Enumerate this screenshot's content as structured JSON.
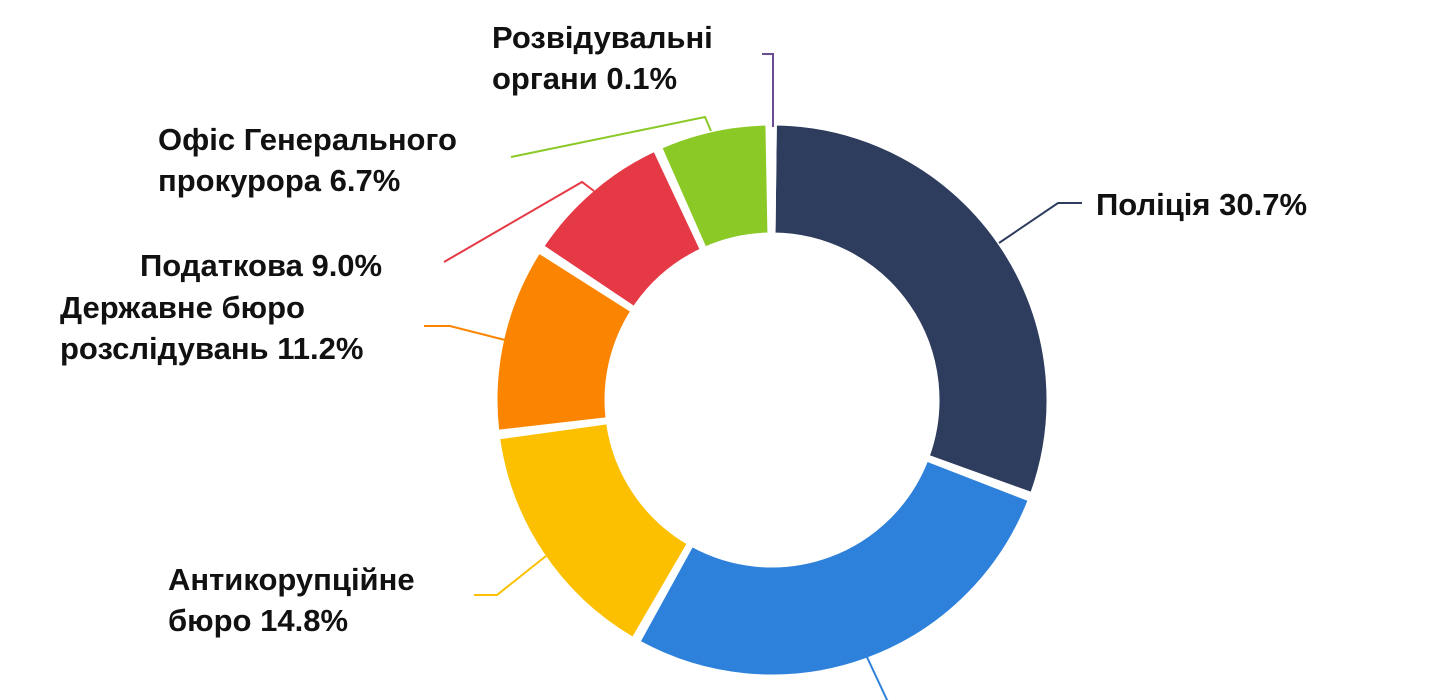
{
  "chart_data": {
    "type": "pie",
    "variant": "donut",
    "title": "",
    "legend": "none",
    "slices": [
      {
        "line1": "Поліція 30.7%",
        "line2": "",
        "value": 30.7,
        "color": "#2e3d5e"
      },
      {
        "line1": "",
        "line2": "",
        "value": 27.5,
        "color": "#2e81db"
      },
      {
        "line1": "Антикорупційне",
        "line2": "бюро 14.8%",
        "value": 14.8,
        "color": "#fcc000"
      },
      {
        "line1": "Державне бюро",
        "line2": "розслідувань 11.2%",
        "value": 11.2,
        "color": "#fb8500"
      },
      {
        "line1": "Податкова 9.0%",
        "line2": "",
        "value": 9.0,
        "color": "#e63946"
      },
      {
        "line1": "Офіс Генерального",
        "line2": "прокурора 6.7%",
        "value": 6.7,
        "color": "#8ac926"
      },
      {
        "line1": "Розвідувальні",
        "line2": "органи 0.1%",
        "value": 0.1,
        "color": "#6a4c93"
      }
    ]
  }
}
